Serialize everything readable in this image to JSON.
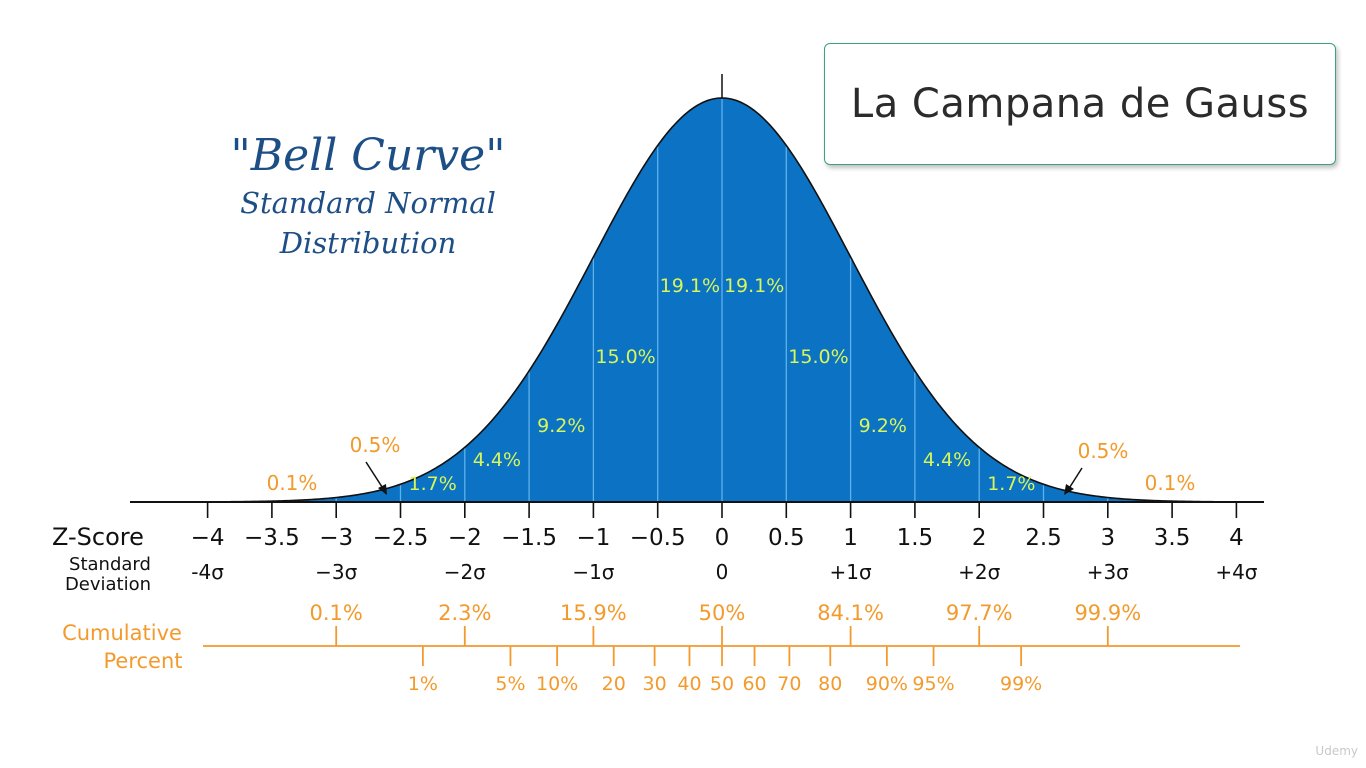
{
  "slide": {
    "title": "La Campana de Gauss",
    "watermark": "Udemy"
  },
  "colors": {
    "curve_fill": "#0b72c4",
    "curve_outline": "#111111",
    "section_lines": "#5fb1ec",
    "section_labels": "#d8f55a",
    "orange": "#f39a2c",
    "title_blue": "#1d4f86",
    "axis": "#111111"
  },
  "chart_data": {
    "type": "area",
    "title": "\"Bell Curve\"",
    "subtitle_lines": [
      "Standard Normal",
      "Distribution"
    ],
    "xlim": [
      -4.45,
      4.2
    ],
    "curve": {
      "distribution": "standard normal",
      "mean": 0,
      "sd": 1
    },
    "zscore_label": "Z-Score",
    "zscore_ticks": [
      {
        "value": -4,
        "label": "−4"
      },
      {
        "value": -3.5,
        "label": "−3.5"
      },
      {
        "value": -3,
        "label": "−3"
      },
      {
        "value": -2.5,
        "label": "−2.5"
      },
      {
        "value": -2,
        "label": "−2"
      },
      {
        "value": -1.5,
        "label": "−1.5"
      },
      {
        "value": -1,
        "label": "−1"
      },
      {
        "value": -0.5,
        "label": "−0.5"
      },
      {
        "value": 0,
        "label": "0"
      },
      {
        "value": 0.5,
        "label": "0.5"
      },
      {
        "value": 1,
        "label": "1"
      },
      {
        "value": 1.5,
        "label": "1.5"
      },
      {
        "value": 2,
        "label": "2"
      },
      {
        "value": 2.5,
        "label": "2.5"
      },
      {
        "value": 3,
        "label": "3"
      },
      {
        "value": 3.5,
        "label": "3.5"
      },
      {
        "value": 4,
        "label": "4"
      }
    ],
    "sd_label_lines": [
      "Standard",
      "Deviation"
    ],
    "sd_ticks": [
      {
        "value": -4,
        "label": "-4σ"
      },
      {
        "value": -3,
        "label": "−3σ"
      },
      {
        "value": -2,
        "label": "−2σ"
      },
      {
        "value": -1,
        "label": "−1σ"
      },
      {
        "value": 0,
        "label": "0"
      },
      {
        "value": 1,
        "label": "+1σ"
      },
      {
        "value": 2,
        "label": "+2σ"
      },
      {
        "value": 3,
        "label": "+3σ"
      },
      {
        "value": 4,
        "label": "+4σ"
      }
    ],
    "section_boundaries": [
      -3,
      -2.5,
      -2,
      -1.5,
      -1,
      -0.5,
      0,
      0.5,
      1,
      1.5,
      2,
      2.5,
      3
    ],
    "section_labels": [
      {
        "from": -2.5,
        "to": -2,
        "text": "1.7%"
      },
      {
        "from": -2,
        "to": -1.5,
        "text": "4.4%"
      },
      {
        "from": -1.5,
        "to": -1,
        "text": "9.2%"
      },
      {
        "from": -1,
        "to": -0.5,
        "text": "15.0%"
      },
      {
        "from": -0.5,
        "to": 0,
        "text": "19.1%"
      },
      {
        "from": 0,
        "to": 0.5,
        "text": "19.1%"
      },
      {
        "from": 0.5,
        "to": 1,
        "text": "15.0%"
      },
      {
        "from": 1,
        "to": 1.5,
        "text": "9.2%"
      },
      {
        "from": 1.5,
        "to": 2,
        "text": "4.4%"
      },
      {
        "from": 2,
        "to": 2.5,
        "text": "1.7%"
      }
    ],
    "tail_labels": [
      {
        "region": "-3.5 to -3",
        "text": "0.1%"
      },
      {
        "region": "-3 to -2.5",
        "text": "0.5%"
      },
      {
        "region": "2.5 to 3",
        "text": "0.5%"
      },
      {
        "region": "3 to 3.5",
        "text": "0.1%"
      }
    ],
    "cumulative_label_lines": [
      "Cumulative",
      "Percent"
    ],
    "cumulative_major": [
      {
        "z": -3,
        "label": "0.1%"
      },
      {
        "z": -2,
        "label": "2.3%"
      },
      {
        "z": -1,
        "label": "15.9%"
      },
      {
        "z": 0,
        "label": "50%"
      },
      {
        "z": 1,
        "label": "84.1%"
      },
      {
        "z": 2,
        "label": "97.7%"
      },
      {
        "z": 3,
        "label": "99.9%"
      }
    ],
    "cumulative_minor": [
      {
        "z": -2.326,
        "label": "1%"
      },
      {
        "z": -1.645,
        "label": "5%"
      },
      {
        "z": -1.282,
        "label": "10%"
      },
      {
        "z": -0.842,
        "label": "20"
      },
      {
        "z": -0.524,
        "label": "30"
      },
      {
        "z": -0.253,
        "label": "40"
      },
      {
        "z": 0,
        "label": "50"
      },
      {
        "z": 0.253,
        "label": "60"
      },
      {
        "z": 0.524,
        "label": "70"
      },
      {
        "z": 0.842,
        "label": "80"
      },
      {
        "z": 1.282,
        "label": "90%"
      },
      {
        "z": 1.645,
        "label": "95%"
      },
      {
        "z": 2.326,
        "label": "99%"
      }
    ]
  }
}
